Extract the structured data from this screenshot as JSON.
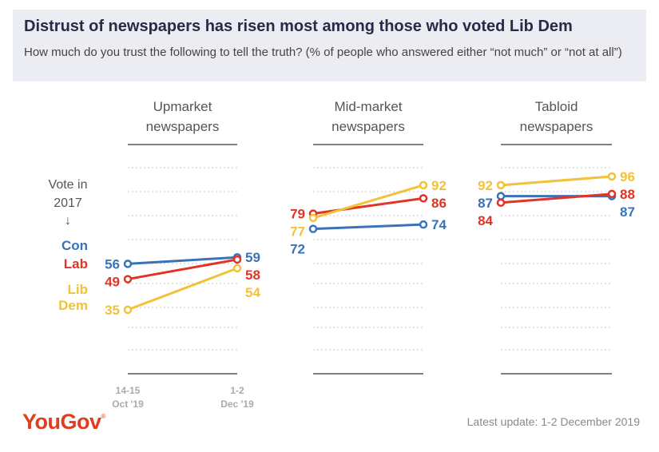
{
  "header": {
    "title": "Distrust of newspapers has risen most among those who voted Lib Dem",
    "subtitle": "How much do you trust the following to tell the truth? (% of people who answered either “not much” or “not at all”)"
  },
  "footer": {
    "logo": "YouGov",
    "update": "Latest update: 1-2 December 2019"
  },
  "colors": {
    "Con": "#3a72b8",
    "Lab": "#e03427",
    "Lib Dem": "#f2c23a",
    "axis": "#555555",
    "grid": "#c8c8c8"
  },
  "chart_data": {
    "type": "line",
    "vote_label": [
      "Vote in",
      "2017"
    ],
    "vote_arrow": "↓",
    "x": [
      "14-15 Oct '19",
      "1-2 Dec '19"
    ],
    "x_ticks": [
      [
        "14-15",
        "Oct '19"
      ],
      [
        "1-2",
        "Dec '19"
      ]
    ],
    "series_labels": [
      [
        "Con"
      ],
      [
        "Lab"
      ],
      [
        "Lib",
        "Dem"
      ]
    ],
    "panels": [
      {
        "title": [
          "Upmarket",
          "newspapers"
        ],
        "series": [
          {
            "name": "Con",
            "values": [
              56,
              59
            ]
          },
          {
            "name": "Lab",
            "values": [
              49,
              58
            ]
          },
          {
            "name": "Lib Dem",
            "values": [
              35,
              54
            ]
          }
        ]
      },
      {
        "title": [
          "Mid-market",
          "newspapers"
        ],
        "series": [
          {
            "name": "Con",
            "values": [
              72,
              74
            ]
          },
          {
            "name": "Lab",
            "values": [
              79,
              86
            ]
          },
          {
            "name": "Lib Dem",
            "values": [
              77,
              92
            ]
          }
        ]
      },
      {
        "title": [
          "Tabloid",
          "newspapers"
        ],
        "series": [
          {
            "name": "Con",
            "values": [
              87,
              87
            ]
          },
          {
            "name": "Lab",
            "values": [
              84,
              88
            ]
          },
          {
            "name": "Lib Dem",
            "values": [
              92,
              96
            ]
          }
        ]
      }
    ],
    "ylim": [
      5,
      100
    ],
    "grid": true
  }
}
